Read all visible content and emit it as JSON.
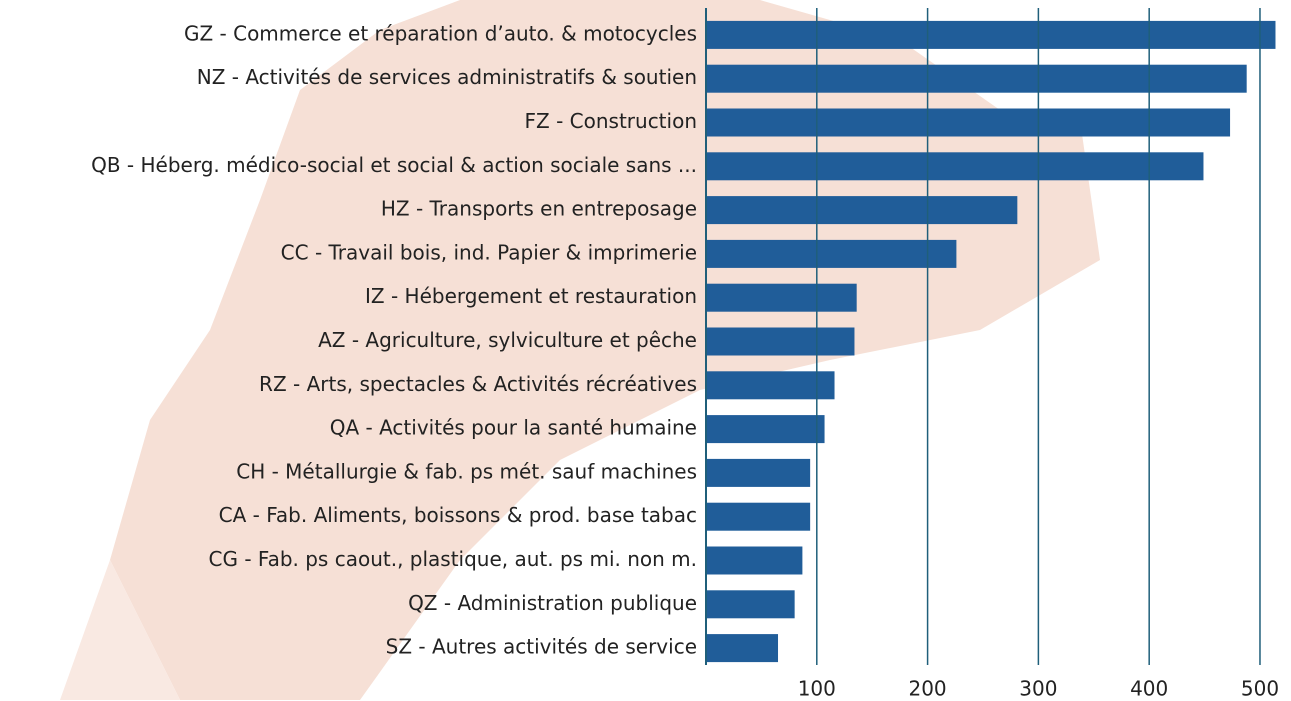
{
  "chart_data": {
    "type": "bar",
    "orientation": "horizontal",
    "categories": [
      "GZ - Commerce et réparation d’auto. & motocycles",
      "NZ - Activités de services administratifs & soutien",
      "FZ - Construction",
      "QB - Héberg. médico-social et social & action sociale sans ...",
      "HZ - Transports en entreposage",
      "CC - Travail bois, ind. Papier & imprimerie",
      "IZ - Hébergement et restauration",
      "AZ - Agriculture, sylviculture et pêche",
      "RZ - Arts, spectacles & Activités récréatives",
      "QA - Activités pour la santé humaine",
      "CH - Métallurgie & fab. ps mét. sauf machines",
      "CA - Fab. Aliments, boissons & prod. base tabac",
      "CG - Fab. ps caout., plastique, aut. ps mi. non m.",
      "QZ - Administration publique",
      "SZ - Autres activités de service"
    ],
    "values": [
      514,
      488,
      473,
      449,
      281,
      226,
      136,
      134,
      116,
      107,
      94,
      94,
      87,
      80,
      65
    ],
    "color": "#205d99",
    "grid_color": "#1f5f7a",
    "xlim": [
      0,
      528
    ],
    "xticks": [
      100,
      200,
      300,
      400,
      500
    ],
    "grid": true
  }
}
